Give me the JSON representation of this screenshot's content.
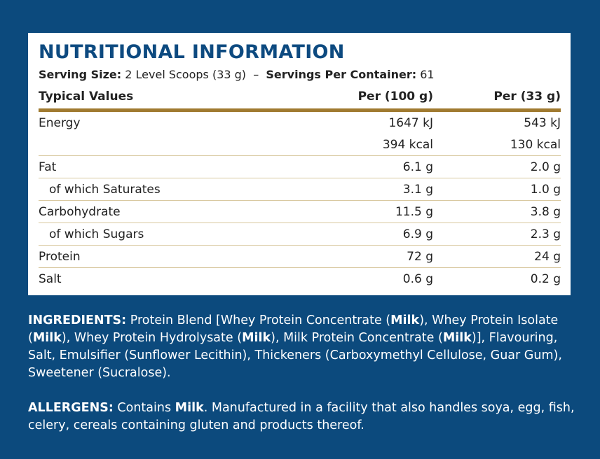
{
  "title": "NUTRITIONAL INFORMATION",
  "serving": {
    "size_label": "Serving Size:",
    "size_value": "2 Level Scoops (33 g)",
    "separator": "–",
    "servings_label": "Servings Per Container:",
    "servings_value": "61"
  },
  "table": {
    "headers": [
      "Typical Values",
      "Per (100 g)",
      "Per (33 g)"
    ],
    "rows": [
      {
        "label": "Energy",
        "per100": "1647 kJ",
        "perServing": "543 kJ",
        "sub": false
      },
      {
        "label": "",
        "per100": "394 kcal",
        "perServing": "130 kcal",
        "sub": false
      },
      {
        "label": "Fat",
        "per100": "6.1 g",
        "perServing": "2.0 g",
        "sub": false
      },
      {
        "label": "of which Saturates",
        "per100": "3.1 g",
        "perServing": "1.0 g",
        "sub": true
      },
      {
        "label": "Carbohydrate",
        "per100": "11.5 g",
        "perServing": "3.8 g",
        "sub": false
      },
      {
        "label": "of which Sugars",
        "per100": "6.9 g",
        "perServing": "2.3 g",
        "sub": true
      },
      {
        "label": "Protein",
        "per100": "72 g",
        "perServing": "24 g",
        "sub": false
      },
      {
        "label": "Salt",
        "per100": "0.6 g",
        "perServing": "0.2 g",
        "sub": false
      }
    ]
  },
  "ingredients": {
    "label": "INGREDIENTS:",
    "segments": [
      {
        "t": " Protein Blend [Whey Protein Concentrate (",
        "b": false
      },
      {
        "t": "Milk",
        "b": true
      },
      {
        "t": "), Whey Protein Isolate (",
        "b": false
      },
      {
        "t": "Milk",
        "b": true
      },
      {
        "t": "), Whey Protein Hydrolysate (",
        "b": false
      },
      {
        "t": "Milk",
        "b": true
      },
      {
        "t": "), Milk Protein Concentrate (",
        "b": false
      },
      {
        "t": "Milk",
        "b": true
      },
      {
        "t": ")], Flavouring, Salt, Emulsifier (Sunflower Lecithin), Thickeners (Carboxymethyl Cellulose, Guar Gum), Sweetener (Sucralose).",
        "b": false
      }
    ]
  },
  "allergens": {
    "label": "ALLERGENS:",
    "segments": [
      {
        "t": " Contains ",
        "b": false
      },
      {
        "t": "Milk",
        "b": true
      },
      {
        "t": ". Manufactured in a facility that also handles soya, egg, fish, celery, cereals containing gluten and products thereof.",
        "b": false
      }
    ]
  },
  "colors": {
    "background": "#0c4a7d",
    "title": "#0d4a80",
    "rule": "#a07a30"
  }
}
